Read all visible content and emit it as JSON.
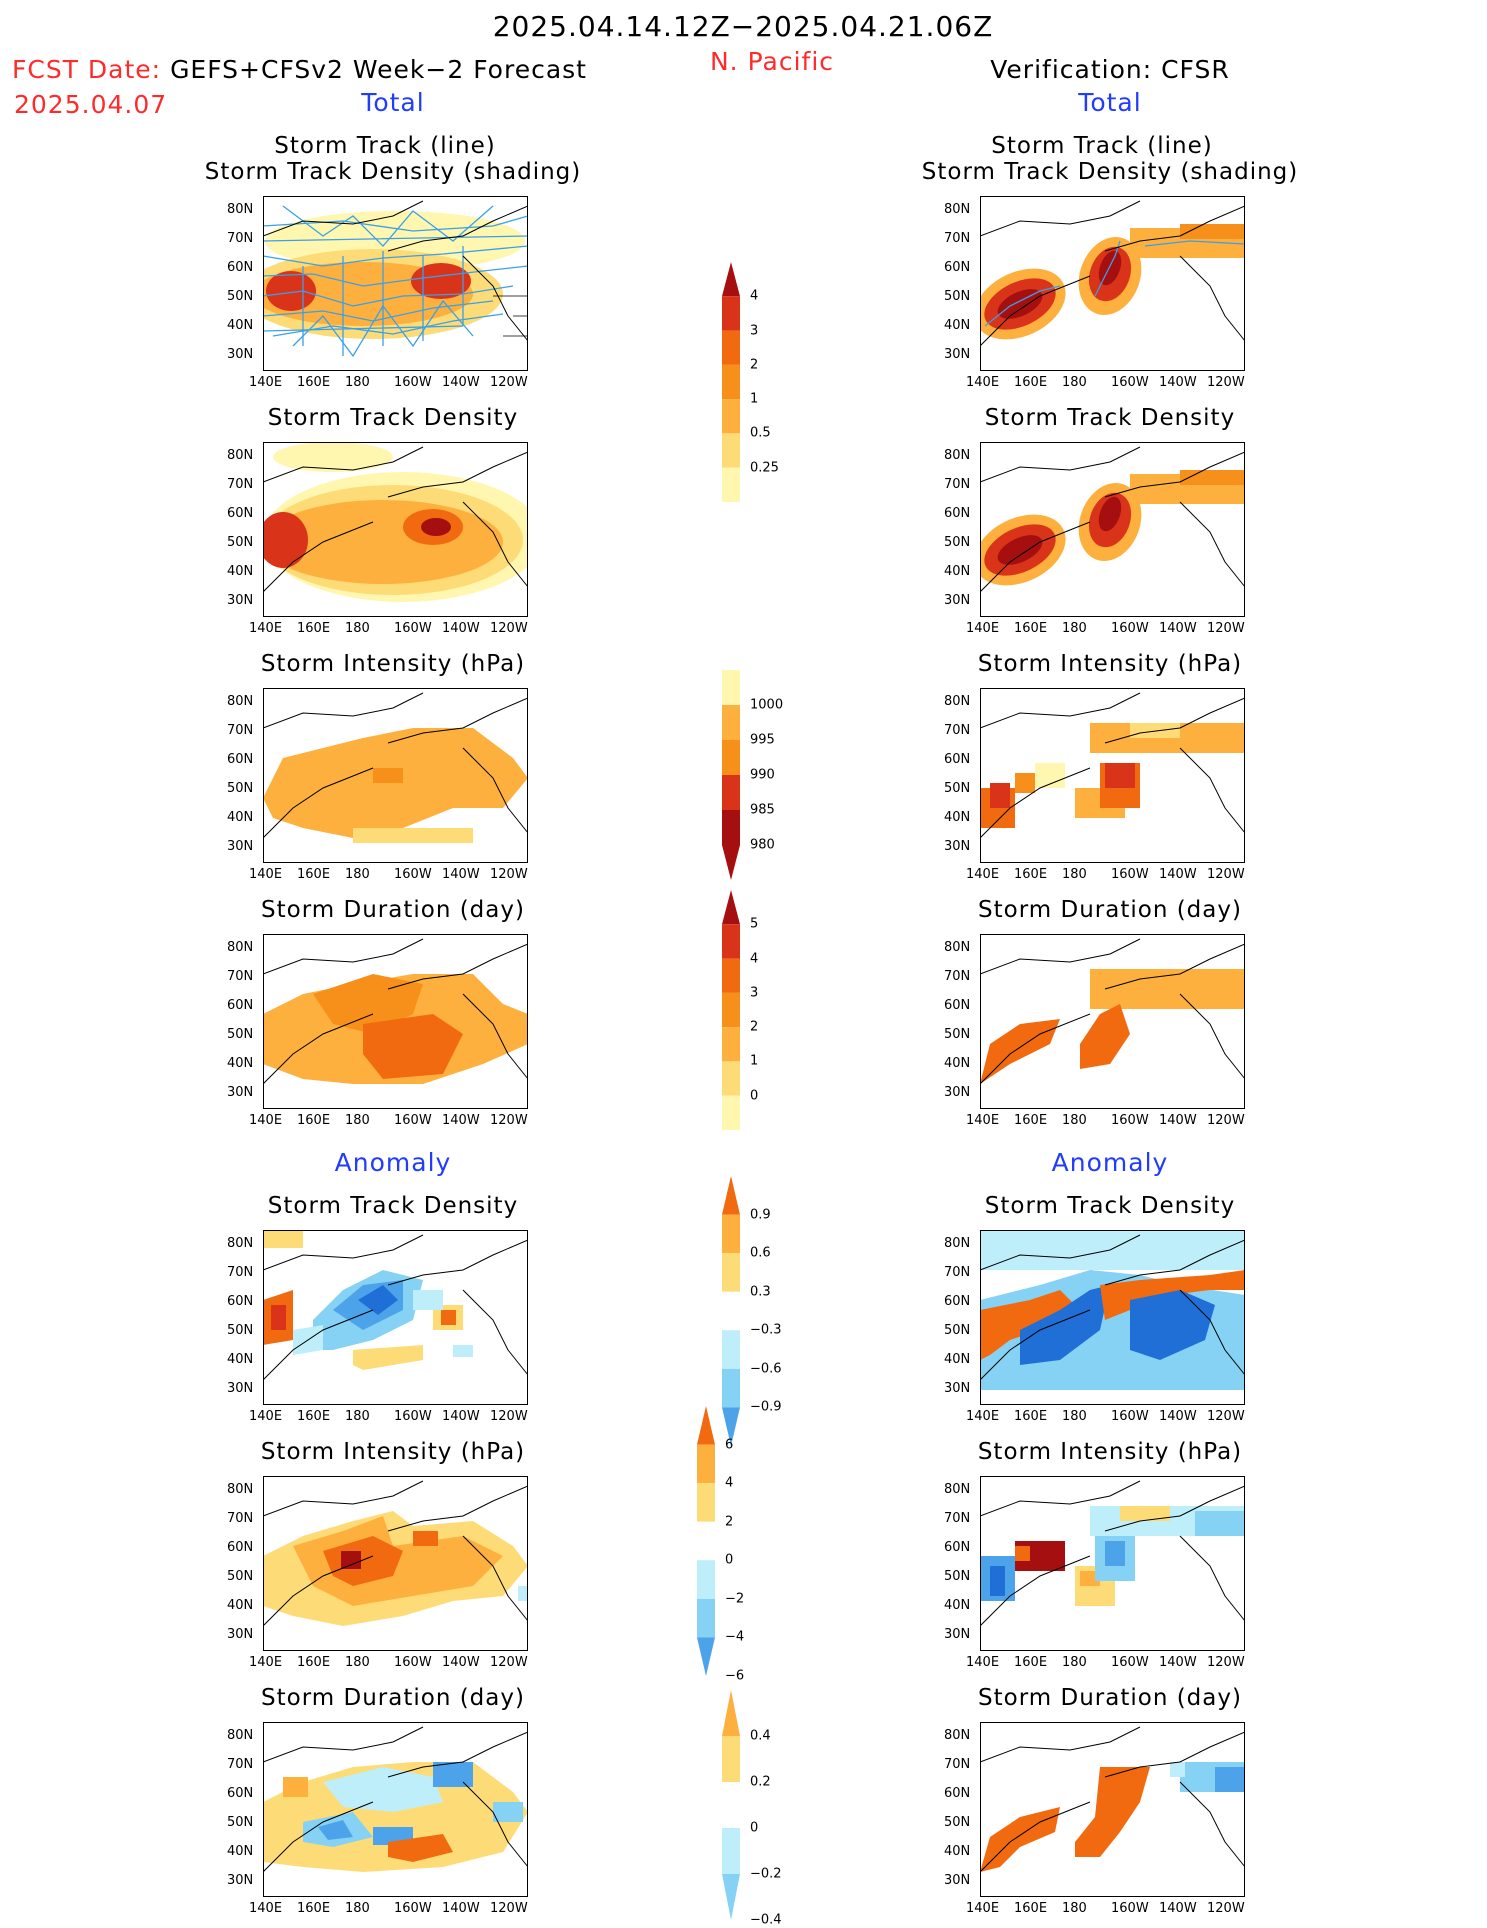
{
  "header": {
    "time_range": "2025.04.14.12Z−2025.04.21.06Z",
    "region": "N. Pacific",
    "fcst_date_label": "FCST Date:",
    "fcst_model": "GEFS+CFSv2 Week−2 Forecast",
    "fcst_date": "2025.04.07",
    "verification": "Verification: CFSR"
  },
  "sections": {
    "total_left": "Total",
    "total_right": "Total",
    "anomaly_left": "Anomaly",
    "anomaly_right": "Anomaly"
  },
  "panel_titles": {
    "track_line": "Storm Track (line)",
    "track_density_shading": "Storm Track Density (shading)",
    "track_density": "Storm Track Density",
    "intensity": "Storm Intensity (hPa)",
    "duration": "Storm Duration (day)"
  },
  "axes": {
    "lat_labels": [
      "80N",
      "70N",
      "60N",
      "50N",
      "40N",
      "30N"
    ],
    "lon_labels": [
      "140E",
      "160E",
      "180",
      "160W",
      "140W",
      "120W"
    ]
  },
  "colorbars": {
    "density_total": [
      "4",
      "3",
      "2",
      "1",
      "0.5",
      "0.25"
    ],
    "intensity_total": [
      "1000",
      "995",
      "990",
      "985",
      "980"
    ],
    "duration_total": [
      "5",
      "4",
      "3",
      "2",
      "1",
      "0"
    ],
    "density_anom": [
      "0.9",
      "0.6",
      "0.3",
      "−0.3",
      "−0.6",
      "−0.9"
    ],
    "intensity_anom": [
      "6",
      "4",
      "2",
      "0",
      "−2",
      "−4",
      "−6"
    ],
    "duration_anom": [
      "0.4",
      "0.2",
      "0",
      "−0.2",
      "−0.4"
    ]
  },
  "colors": {
    "warm": [
      "#fff7b0",
      "#fddc78",
      "#fdb03e",
      "#f7901a",
      "#f26a10",
      "#d9331a",
      "#a50f0f"
    ],
    "cool": [
      "#bdeefa",
      "#86d2f5",
      "#4da3ea",
      "#1f6fd6"
    ],
    "track_line": "#3aa0e8"
  }
}
